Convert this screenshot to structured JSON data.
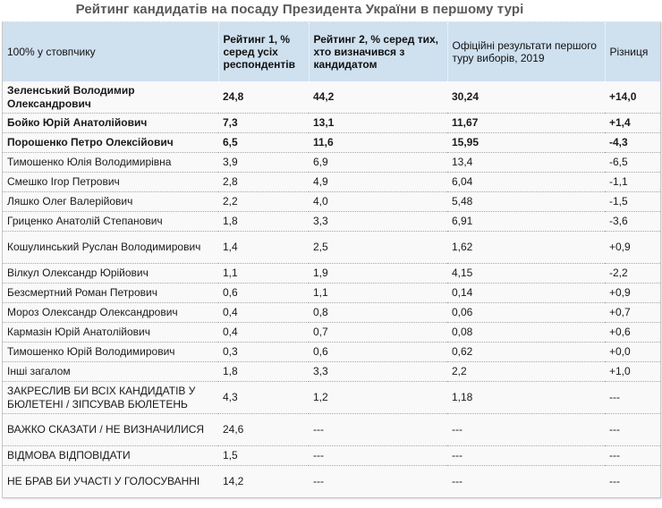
{
  "title": "Рейтинг кандидатів на посаду Президента України в першому турі",
  "table": {
    "headers": [
      "100% у стовпчику",
      "Рейтинг 1, % серед усіх респондентів",
      "Рейтинг 2, % серед тих, хто визначився з кандидатом",
      "Офіційні результати першого туру виборів, 2019",
      "Різниця"
    ],
    "rows": [
      {
        "name": "Зеленський Володимир Олександрович",
        "r1": "24,8",
        "r2": "44,2",
        "official": "30,24",
        "diff": "+14,0",
        "bold": true,
        "tall": true
      },
      {
        "name": "Бойко Юрій Анатолійович",
        "r1": "7,3",
        "r2": "13,1",
        "official": "11,67",
        "diff": "+1,4",
        "bold": true,
        "tall": false
      },
      {
        "name": "Порошенко Петро Олексійович",
        "r1": "6,5",
        "r2": "11,6",
        "official": "15,95",
        "diff": "-4,3",
        "bold": true,
        "tall": false
      },
      {
        "name": "Тимошенко Юлія Володимирівна",
        "r1": "3,9",
        "r2": "6,9",
        "official": "13,4",
        "diff": "-6,5",
        "bold": false,
        "tall": false
      },
      {
        "name": "Смешко Ігор Петрович",
        "r1": "2,8",
        "r2": "4,9",
        "official": "6,04",
        "diff": "-1,1",
        "bold": false,
        "tall": false
      },
      {
        "name": "Ляшко Олег Валерійович",
        "r1": "2,2",
        "r2": "4,0",
        "official": "5,48",
        "diff": "-1,5",
        "bold": false,
        "tall": false
      },
      {
        "name": "Гриценко Анатолій Степанович",
        "r1": "1,8",
        "r2": "3,3",
        "official": "6,91",
        "diff": "-3,6",
        "bold": false,
        "tall": false
      },
      {
        "name": "Кошулинський Руслан Володимирович",
        "r1": "1,4",
        "r2": "2,5",
        "official": "1,62",
        "diff": "+0,9",
        "bold": false,
        "tall": true
      },
      {
        "name": "Вілкул Олександр Юрійович",
        "r1": "1,1",
        "r2": "1,9",
        "official": "4,15",
        "diff": "-2,2",
        "bold": false,
        "tall": false
      },
      {
        "name": "Безсмертний Роман Петрович",
        "r1": "0,6",
        "r2": "1,1",
        "official": "0,14",
        "diff": "+0,9",
        "bold": false,
        "tall": false
      },
      {
        "name": "Мороз Олександр Олександрович",
        "r1": "0,4",
        "r2": "0,8",
        "official": "0,06",
        "diff": "+0,7",
        "bold": false,
        "tall": false
      },
      {
        "name": "Кармазін Юрій Анатолійович",
        "r1": "0,4",
        "r2": "0,7",
        "official": "0,08",
        "diff": "+0,6",
        "bold": false,
        "tall": false
      },
      {
        "name": "Тимошенко Юрій Володимирович",
        "r1": "0,3",
        "r2": "0,6",
        "official": "0,62",
        "diff": "+0,0",
        "bold": false,
        "tall": false
      },
      {
        "name": "Інші загалом",
        "r1": "1,8",
        "r2": "3,3",
        "official": "2,2",
        "diff": "+1,0",
        "bold": false,
        "tall": false
      },
      {
        "name": "ЗАКРЕСЛИВ БИ ВСІХ КАНДИДАТІВ У БЮЛЕТЕНІ / ЗІПСУВАВ БЮЛЕТЕНЬ",
        "r1": "4,3",
        "r2": "1,2",
        "official": "1,18",
        "diff": "---",
        "bold": false,
        "tall": true
      },
      {
        "name": "ВАЖКО СКАЗАТИ / НЕ ВИЗНАЧИЛИСЯ",
        "r1": "24,6",
        "r2": "---",
        "official": "---",
        "diff": "---",
        "bold": false,
        "tall": true
      },
      {
        "name": "ВІДМОВА ВІДПОВІДАТИ",
        "r1": "1,5",
        "r2": "---",
        "official": "---",
        "diff": "---",
        "bold": false,
        "tall": false
      },
      {
        "name": "НЕ БРАВ БИ УЧАСТІ У ГОЛОСУВАННІ",
        "r1": "14,2",
        "r2": "---",
        "official": "---",
        "diff": "---",
        "bold": false,
        "tall": true
      }
    ]
  },
  "colors": {
    "header_bg": "#cfe0ef",
    "title_color": "#5a5a5a",
    "body_bg": "#f9f9f9"
  }
}
